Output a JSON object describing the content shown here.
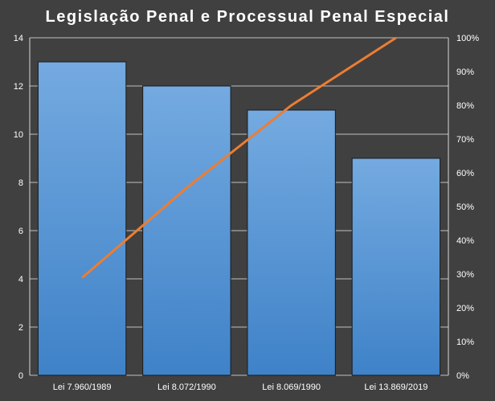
{
  "chart_data": {
    "type": "bar",
    "title": "Legislação  Penal  e Processual  Penal  Especial",
    "categories": [
      "Lei 7.960/1989",
      "Lei 8.072/1990",
      "Lei 8.069/1990",
      "Lei 13.869/2019"
    ],
    "series": [
      {
        "type": "bar",
        "axis": "left",
        "values": [
          13,
          12,
          11,
          9
        ],
        "color": "#5b9bd5"
      },
      {
        "type": "line",
        "axis": "right",
        "values": [
          0.2889,
          0.5556,
          0.8,
          1.0
        ],
        "color": "#ed7d31"
      }
    ],
    "ylim": [
      0,
      14
    ],
    "yticks": [
      "0",
      "2",
      "4",
      "6",
      "8",
      "10",
      "12",
      "14"
    ],
    "y2lim": [
      0,
      1
    ],
    "y2ticks": [
      "0%",
      "10%",
      "20%",
      "30%",
      "40%",
      "50%",
      "60%",
      "70%",
      "80%",
      "90%",
      "100%"
    ],
    "grid": true,
    "legend": "none",
    "background": "#404040",
    "gridColor": "#ffffff"
  }
}
